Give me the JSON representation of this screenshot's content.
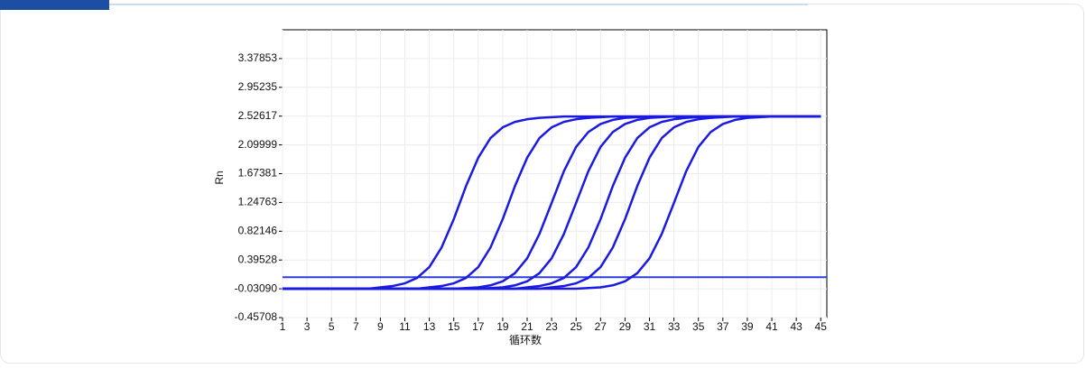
{
  "chart_data": {
    "type": "line",
    "y_label": "Rn",
    "x_label": "循环数",
    "x": [
      1,
      2,
      3,
      4,
      5,
      6,
      7,
      8,
      9,
      10,
      11,
      12,
      13,
      14,
      15,
      16,
      17,
      18,
      19,
      20,
      21,
      22,
      23,
      24,
      25,
      26,
      27,
      28,
      29,
      30,
      31,
      32,
      33,
      34,
      35,
      36,
      37,
      38,
      39,
      40,
      41,
      42,
      43,
      44,
      45
    ],
    "xlim": [
      1,
      45.5
    ],
    "xticks": [
      1,
      3,
      5,
      7,
      9,
      11,
      13,
      15,
      17,
      19,
      21,
      23,
      25,
      27,
      29,
      31,
      33,
      35,
      37,
      39,
      41,
      43,
      45
    ],
    "ylim": [
      -0.45708,
      3.80471
    ],
    "yticks": [
      {
        "value": -0.45708,
        "label": "-0.45708"
      },
      {
        "value": -0.0309,
        "label": "-0.03090"
      },
      0.39528,
      0.82146,
      1.24763,
      1.67381,
      2.09999,
      2.52617,
      2.95235,
      3.37853
    ],
    "grid": true,
    "threshold": {
      "value": 0.14,
      "color": "#2c3fd8"
    },
    "series": [
      {
        "color": "#1a1ae0",
        "values": [
          -0.03,
          -0.03,
          -0.03,
          -0.03,
          -0.03,
          -0.03,
          -0.03,
          -0.03,
          -0.01,
          0.01,
          0.05,
          0.13,
          0.29,
          0.58,
          1.0,
          1.49,
          1.91,
          2.2,
          2.36,
          2.44,
          2.48,
          2.5,
          2.51,
          2.52,
          2.52,
          2.52,
          2.52,
          2.52,
          2.52,
          2.52,
          2.52,
          2.52,
          2.52,
          2.52,
          2.52,
          2.52,
          2.52,
          2.52,
          2.52,
          2.52,
          2.52,
          2.52,
          2.52,
          2.52,
          2.52
        ]
      },
      {
        "color": "#1a1ae0",
        "values": [
          -0.03,
          -0.03,
          -0.03,
          -0.03,
          -0.03,
          -0.03,
          -0.03,
          -0.03,
          -0.03,
          -0.03,
          -0.03,
          -0.03,
          -0.01,
          0.01,
          0.05,
          0.13,
          0.29,
          0.58,
          1.0,
          1.49,
          1.91,
          2.2,
          2.36,
          2.44,
          2.48,
          2.5,
          2.51,
          2.52,
          2.52,
          2.52,
          2.52,
          2.52,
          2.52,
          2.52,
          2.52,
          2.52,
          2.52,
          2.52,
          2.52,
          2.52,
          2.52,
          2.52,
          2.52,
          2.52,
          2.52
        ]
      },
      {
        "color": "#1a1ae0",
        "values": [
          -0.03,
          -0.03,
          -0.03,
          -0.03,
          -0.03,
          -0.03,
          -0.03,
          -0.03,
          -0.03,
          -0.03,
          -0.03,
          -0.03,
          -0.03,
          -0.03,
          -0.03,
          -0.02,
          -0.01,
          0.02,
          0.08,
          0.2,
          0.42,
          0.78,
          1.24,
          1.71,
          2.07,
          2.29,
          2.41,
          2.47,
          2.5,
          2.51,
          2.52,
          2.52,
          2.52,
          2.52,
          2.52,
          2.52,
          2.52,
          2.52,
          2.52,
          2.52,
          2.52,
          2.52,
          2.52,
          2.52,
          2.52
        ]
      },
      {
        "color": "#1a1ae0",
        "values": [
          -0.03,
          -0.03,
          -0.03,
          -0.03,
          -0.03,
          -0.03,
          -0.03,
          -0.03,
          -0.03,
          -0.03,
          -0.03,
          -0.03,
          -0.03,
          -0.03,
          -0.03,
          -0.03,
          -0.03,
          -0.02,
          -0.01,
          0.02,
          0.08,
          0.2,
          0.42,
          0.78,
          1.24,
          1.71,
          2.07,
          2.29,
          2.41,
          2.47,
          2.5,
          2.51,
          2.52,
          2.52,
          2.52,
          2.52,
          2.52,
          2.52,
          2.52,
          2.52,
          2.52,
          2.52,
          2.52,
          2.52,
          2.52
        ]
      },
      {
        "color": "#1a1ae0",
        "values": [
          -0.03,
          -0.03,
          -0.03,
          -0.03,
          -0.03,
          -0.03,
          -0.03,
          -0.03,
          -0.03,
          -0.03,
          -0.03,
          -0.03,
          -0.03,
          -0.03,
          -0.03,
          -0.03,
          -0.03,
          -0.03,
          -0.03,
          -0.03,
          -0.01,
          0.01,
          0.05,
          0.13,
          0.29,
          0.58,
          1.0,
          1.49,
          1.91,
          2.2,
          2.36,
          2.44,
          2.48,
          2.5,
          2.51,
          2.52,
          2.52,
          2.52,
          2.52,
          2.52,
          2.52,
          2.52,
          2.52,
          2.52,
          2.52
        ]
      },
      {
        "color": "#1a1ae0",
        "values": [
          -0.03,
          -0.03,
          -0.03,
          -0.03,
          -0.03,
          -0.03,
          -0.03,
          -0.03,
          -0.03,
          -0.03,
          -0.03,
          -0.03,
          -0.03,
          -0.03,
          -0.03,
          -0.03,
          -0.03,
          -0.03,
          -0.03,
          -0.03,
          -0.03,
          -0.03,
          -0.01,
          0.01,
          0.05,
          0.13,
          0.29,
          0.58,
          1.0,
          1.49,
          1.91,
          2.2,
          2.36,
          2.44,
          2.48,
          2.5,
          2.51,
          2.52,
          2.52,
          2.52,
          2.52,
          2.52,
          2.52,
          2.52,
          2.52
        ]
      },
      {
        "color": "#1a1ae0",
        "values": [
          -0.03,
          -0.03,
          -0.03,
          -0.03,
          -0.03,
          -0.03,
          -0.03,
          -0.03,
          -0.03,
          -0.03,
          -0.03,
          -0.03,
          -0.03,
          -0.03,
          -0.03,
          -0.03,
          -0.03,
          -0.03,
          -0.03,
          -0.03,
          -0.03,
          -0.03,
          -0.03,
          -0.03,
          -0.03,
          -0.02,
          -0.01,
          0.02,
          0.08,
          0.2,
          0.42,
          0.78,
          1.24,
          1.71,
          2.07,
          2.29,
          2.41,
          2.47,
          2.5,
          2.51,
          2.52,
          2.52,
          2.52,
          2.52,
          2.52
        ]
      }
    ]
  }
}
